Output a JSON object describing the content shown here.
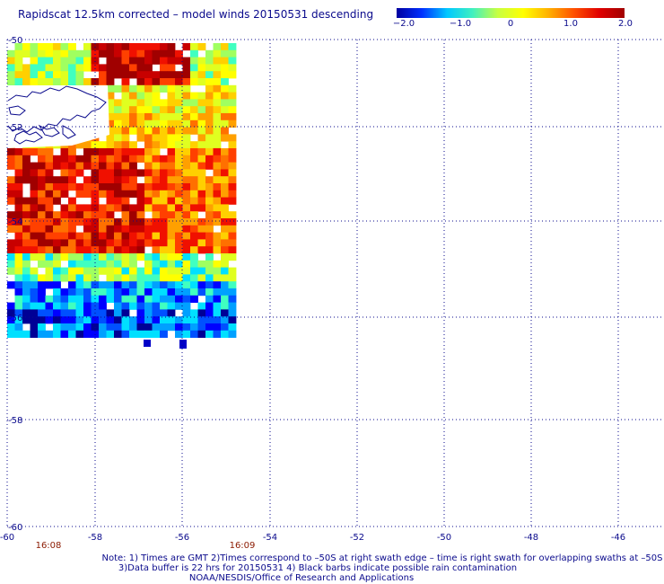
{
  "title": "Rapidscat 12.5km corrected – model winds 20150531 descending",
  "colorbar": {
    "labels": [
      "−2.0",
      "−1.0",
      "0",
      "1.0",
      "2.0"
    ],
    "stops": [
      "#0000a0",
      "#0030ff",
      "#00c8ff",
      "#40f0c0",
      "#c8ff40",
      "#ffff00",
      "#ffb000",
      "#ff5000",
      "#e00000",
      "#a00000"
    ]
  },
  "axes": {
    "x_labels": [
      "-60",
      "-58",
      "-56",
      "-54",
      "-52",
      "-50",
      "-48",
      "-46"
    ],
    "y_labels": [
      "-50",
      "-52",
      "-54",
      "-56",
      "-58",
      "-60"
    ]
  },
  "swath_times": [
    "16:08",
    "16:09"
  ],
  "notes": {
    "line1": "Note: 1) Times are GMT 2)Times correspond to –50S at right swath edge – time is right swath for overlapping swaths at –50S",
    "line2": "3)Data buffer is 22 hrs for 20150531 4) Black barbs indicate possible rain contamination",
    "line3": "NOAA/NESDIS/Office of Research and Applications"
  }
}
